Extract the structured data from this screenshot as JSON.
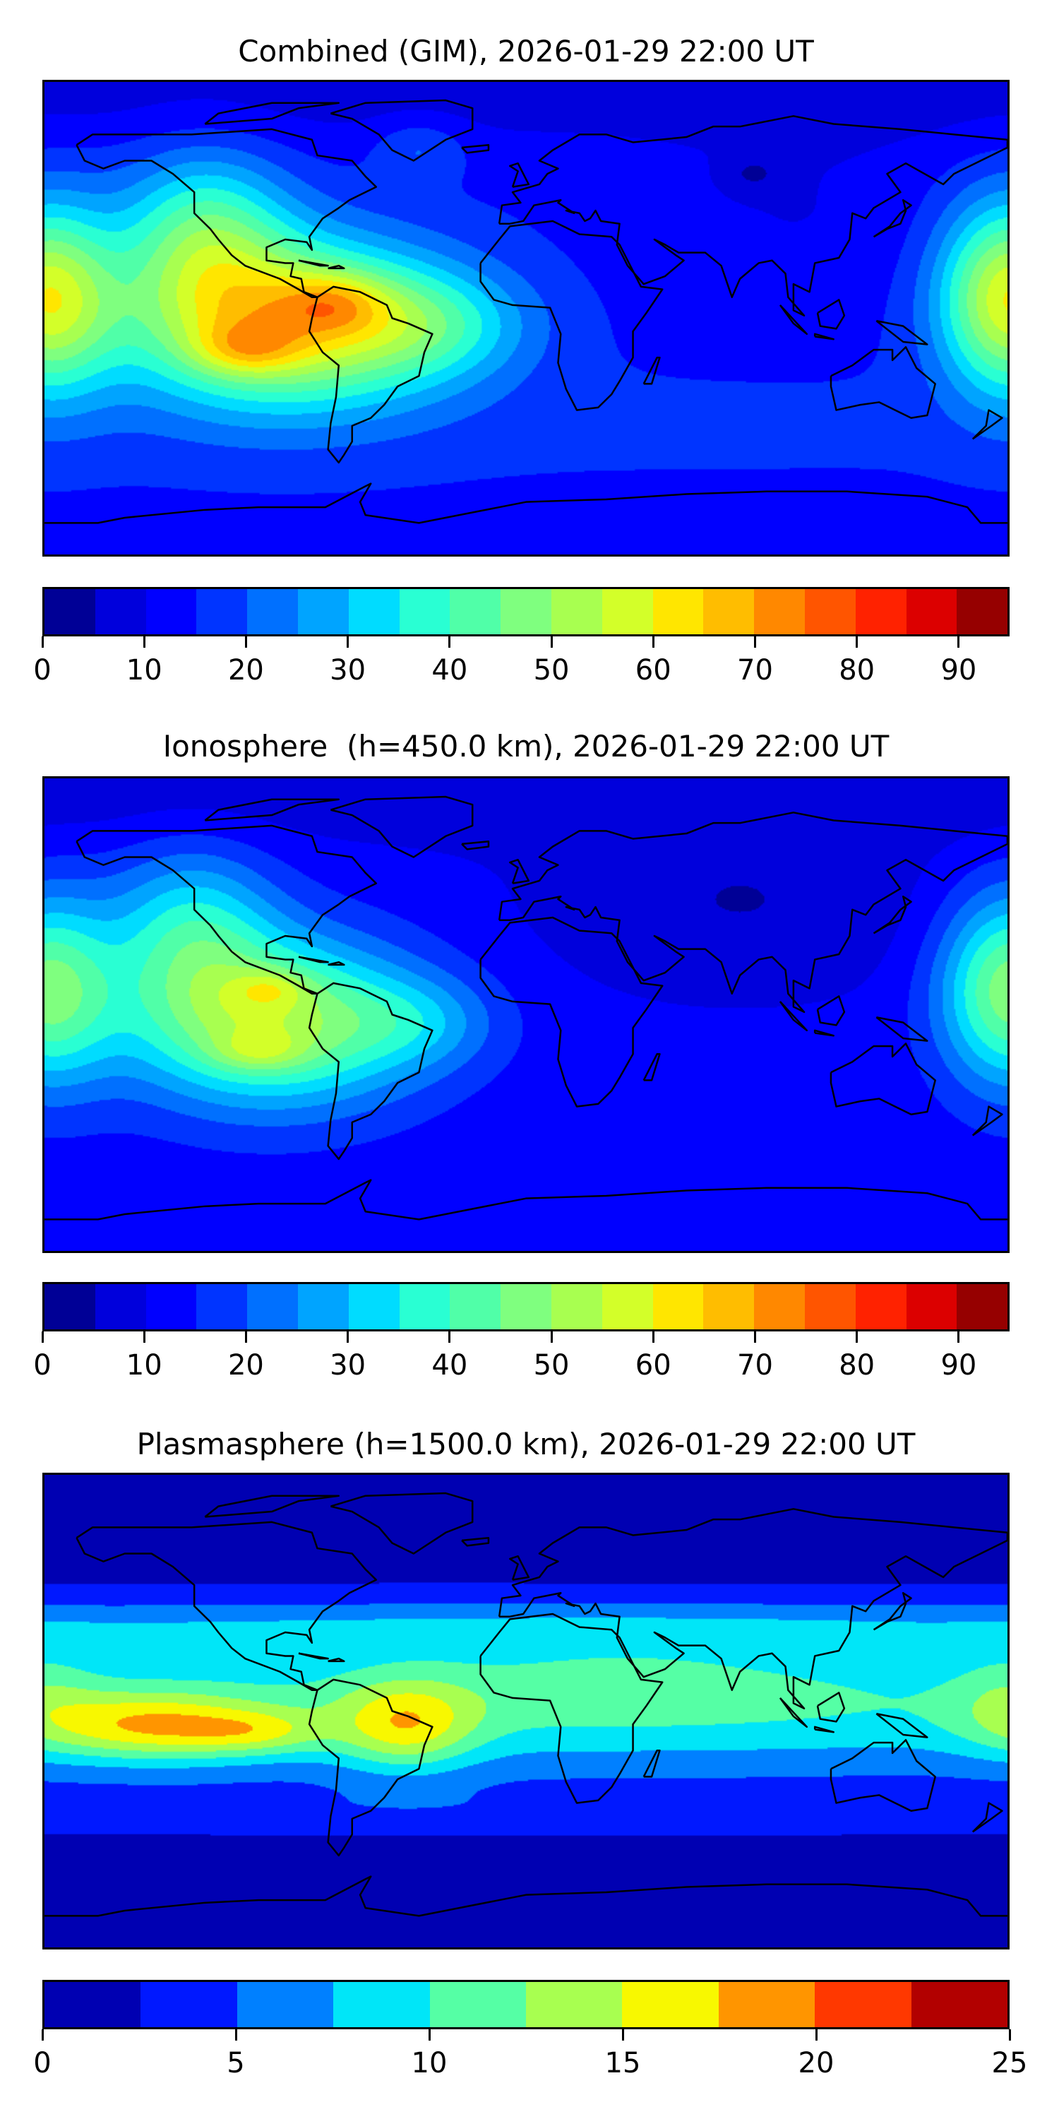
{
  "chart_data": [
    {
      "type": "heatmap",
      "title": "Combined (GIM), 2026-01-29 22:00 UT",
      "projection": "plate-carree global map with coastlines",
      "colorbar": {
        "min": 0,
        "max": 95,
        "ticks": [
          0,
          10,
          20,
          30,
          40,
          50,
          60,
          70,
          80,
          90
        ],
        "tick_labels": [
          "0",
          "10",
          "20",
          "30",
          "40",
          "50",
          "60",
          "70",
          "80",
          "90"
        ],
        "colors": [
          "#000096",
          "#0000dc",
          "#0000ff",
          "#0034ff",
          "#0070ff",
          "#00a4ff",
          "#00dcff",
          "#29ffd3",
          "#50ffa8",
          "#7fff7f",
          "#a8ff50",
          "#d3ff29",
          "#ffe600",
          "#ffbd00",
          "#ff8800",
          "#ff5500",
          "#ff2200",
          "#dc0000",
          "#960000"
        ]
      },
      "features": [
        "maximum ~85 over eastern Pacific / South America near equator",
        "values 40-60 at eastern edge (western Pacific)",
        "background ~10-20 elsewhere"
      ]
    },
    {
      "type": "heatmap",
      "title": "Ionosphere  (h=450.0 km), 2026-01-29 22:00 UT",
      "projection": "plate-carree global map with coastlines",
      "colorbar": {
        "min": 0,
        "max": 95,
        "ticks": [
          0,
          10,
          20,
          30,
          40,
          50,
          60,
          70,
          80,
          90
        ],
        "tick_labels": [
          "0",
          "10",
          "20",
          "30",
          "40",
          "50",
          "60",
          "70",
          "80",
          "90"
        ],
        "colors": [
          "#000096",
          "#0000dc",
          "#0000ff",
          "#0034ff",
          "#0070ff",
          "#00a4ff",
          "#00dcff",
          "#29ffd3",
          "#50ffa8",
          "#7fff7f",
          "#a8ff50",
          "#d3ff29",
          "#ffe600",
          "#ffbd00",
          "#ff8800",
          "#ff5500",
          "#ff2200",
          "#dc0000",
          "#960000"
        ]
      },
      "features": [
        "two crests ~65-70 over eastern Pacific",
        "lowest values 0-10 over Eurasia"
      ]
    },
    {
      "type": "heatmap",
      "title": "Plasmasphere (h=1500.0 km), 2026-01-29 22:00 UT",
      "projection": "plate-carree global map with coastlines",
      "colorbar": {
        "min": 0,
        "max": 25,
        "ticks": [
          0,
          5,
          10,
          15,
          20,
          25
        ],
        "tick_labels": [
          "0",
          "5",
          "10",
          "15",
          "20",
          "25"
        ],
        "colors": [
          "#0000b2",
          "#0018ff",
          "#0080ff",
          "#00e6f8",
          "#55ffa5",
          "#a8ff50",
          "#f8f800",
          "#ff9500",
          "#ff3800",
          "#b20000"
        ]
      },
      "features": [
        "maximum ~20-22 in central Pacific and over Brazil",
        "equatorial band 10-17",
        "minimum 0-2.5 at high latitudes"
      ]
    }
  ]
}
